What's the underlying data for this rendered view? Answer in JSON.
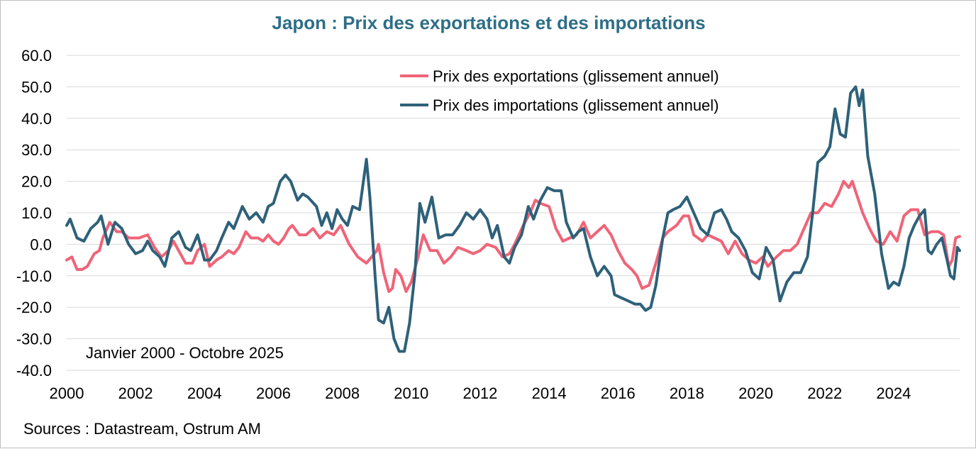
{
  "chart_data": {
    "type": "line",
    "title": "Japon : Prix des exportations et des importations",
    "xlabel": "",
    "ylabel": "",
    "x_range": [
      2000,
      2025.917
    ],
    "ylim": [
      -40,
      60
    ],
    "yticks": [
      60,
      50,
      40,
      30,
      20,
      10,
      0,
      -10,
      -20,
      -30,
      -40
    ],
    "ytick_labels": [
      "60.0",
      "50.0",
      "40.0",
      "30.0",
      "20.0",
      "10.0",
      "0.0",
      "-10.0",
      "-20.0",
      "-30.0",
      "-40.0"
    ],
    "xticks": [
      2000,
      2002,
      2004,
      2006,
      2008,
      2010,
      2012,
      2014,
      2016,
      2018,
      2020,
      2022,
      2024
    ],
    "xtick_labels": [
      "2000",
      "2002",
      "2004",
      "2006",
      "2008",
      "2010",
      "2012",
      "2014",
      "2016",
      "2018",
      "2020",
      "2022",
      "2024"
    ],
    "grid": true,
    "legend_position": "top-center",
    "annotation": "Janvier 2000 - Octobre 2025",
    "source": "Sources : Datastream, Ostrum AM",
    "series": [
      {
        "name": "Prix des exportations (glissement annuel)",
        "color": "#f06478",
        "points": [
          [
            2000.0,
            -5
          ],
          [
            2000.15,
            -4
          ],
          [
            2000.3,
            -8
          ],
          [
            2000.45,
            -8
          ],
          [
            2000.6,
            -7
          ],
          [
            2000.8,
            -3
          ],
          [
            2000.95,
            -2
          ],
          [
            2001.05,
            2
          ],
          [
            2001.25,
            7
          ],
          [
            2001.45,
            4
          ],
          [
            2001.6,
            4
          ],
          [
            2001.8,
            2
          ],
          [
            2002.1,
            2
          ],
          [
            2002.35,
            3
          ],
          [
            2002.55,
            -1
          ],
          [
            2002.75,
            -4
          ],
          [
            2002.95,
            -2
          ],
          [
            2003.1,
            1
          ],
          [
            2003.3,
            -3
          ],
          [
            2003.45,
            -6
          ],
          [
            2003.65,
            -6
          ],
          [
            2003.8,
            -2
          ],
          [
            2004.0,
            0
          ],
          [
            2004.15,
            -7
          ],
          [
            2004.35,
            -5
          ],
          [
            2004.5,
            -4
          ],
          [
            2004.7,
            -2
          ],
          [
            2004.85,
            -3
          ],
          [
            2005.0,
            -1
          ],
          [
            2005.2,
            4
          ],
          [
            2005.35,
            2
          ],
          [
            2005.55,
            2
          ],
          [
            2005.7,
            1
          ],
          [
            2005.85,
            3
          ],
          [
            2006.0,
            1
          ],
          [
            2006.15,
            0
          ],
          [
            2006.3,
            2
          ],
          [
            2006.45,
            5
          ],
          [
            2006.55,
            6
          ],
          [
            2006.75,
            3
          ],
          [
            2006.95,
            3
          ],
          [
            2007.15,
            5
          ],
          [
            2007.35,
            2
          ],
          [
            2007.55,
            4
          ],
          [
            2007.75,
            3
          ],
          [
            2007.95,
            6
          ],
          [
            2008.2,
            0
          ],
          [
            2008.45,
            -4
          ],
          [
            2008.7,
            -6
          ],
          [
            2008.85,
            -4
          ],
          [
            2009.0,
            -2
          ],
          [
            2009.05,
            0
          ],
          [
            2009.2,
            -9
          ],
          [
            2009.35,
            -15
          ],
          [
            2009.45,
            -14
          ],
          [
            2009.55,
            -8
          ],
          [
            2009.7,
            -10
          ],
          [
            2009.85,
            -15
          ],
          [
            2010.0,
            -12
          ],
          [
            2010.2,
            -4
          ],
          [
            2010.35,
            3
          ],
          [
            2010.55,
            -2
          ],
          [
            2010.75,
            -2
          ],
          [
            2010.95,
            -6
          ],
          [
            2011.15,
            -4
          ],
          [
            2011.35,
            -1
          ],
          [
            2011.6,
            -2
          ],
          [
            2011.8,
            -3
          ],
          [
            2012.0,
            -2
          ],
          [
            2012.2,
            0
          ],
          [
            2012.45,
            -1
          ],
          [
            2012.65,
            -4
          ],
          [
            2012.85,
            -3
          ],
          [
            2013.0,
            0
          ],
          [
            2013.25,
            6
          ],
          [
            2013.45,
            10
          ],
          [
            2013.6,
            14
          ],
          [
            2013.75,
            13
          ],
          [
            2014.0,
            12
          ],
          [
            2014.2,
            5
          ],
          [
            2014.4,
            1
          ],
          [
            2014.6,
            2
          ],
          [
            2014.8,
            3
          ],
          [
            2015.0,
            7
          ],
          [
            2015.2,
            2
          ],
          [
            2015.4,
            4
          ],
          [
            2015.6,
            6
          ],
          [
            2015.8,
            3
          ],
          [
            2016.0,
            -2
          ],
          [
            2016.2,
            -6
          ],
          [
            2016.4,
            -8
          ],
          [
            2016.55,
            -10
          ],
          [
            2016.7,
            -14
          ],
          [
            2016.9,
            -13
          ],
          [
            2017.1,
            -6
          ],
          [
            2017.3,
            2
          ],
          [
            2017.45,
            4
          ],
          [
            2017.7,
            6
          ],
          [
            2017.9,
            9
          ],
          [
            2018.05,
            9
          ],
          [
            2018.2,
            3
          ],
          [
            2018.45,
            1
          ],
          [
            2018.6,
            3
          ],
          [
            2018.8,
            2
          ],
          [
            2019.0,
            1
          ],
          [
            2019.2,
            -3
          ],
          [
            2019.4,
            1
          ],
          [
            2019.6,
            -3
          ],
          [
            2019.8,
            -5
          ],
          [
            2020.0,
            -6
          ],
          [
            2020.2,
            -4
          ],
          [
            2020.35,
            -7
          ],
          [
            2020.6,
            -4
          ],
          [
            2020.8,
            -2
          ],
          [
            2021.0,
            -2
          ],
          [
            2021.2,
            0
          ],
          [
            2021.4,
            5
          ],
          [
            2021.6,
            10
          ],
          [
            2021.8,
            10
          ],
          [
            2022.0,
            13
          ],
          [
            2022.2,
            12
          ],
          [
            2022.4,
            16
          ],
          [
            2022.55,
            20
          ],
          [
            2022.7,
            18
          ],
          [
            2022.8,
            20
          ],
          [
            2022.95,
            15
          ],
          [
            2023.1,
            10
          ],
          [
            2023.3,
            5
          ],
          [
            2023.5,
            1
          ],
          [
            2023.7,
            0
          ],
          [
            2023.9,
            4
          ],
          [
            2024.1,
            1
          ],
          [
            2024.3,
            9
          ],
          [
            2024.5,
            11
          ],
          [
            2024.7,
            11
          ],
          [
            2024.9,
            3
          ],
          [
            2025.1,
            4
          ],
          [
            2025.3,
            4
          ],
          [
            2025.45,
            3
          ],
          [
            2025.6,
            -7
          ],
          [
            2025.7,
            -5
          ],
          [
            2025.8,
            2
          ],
          [
            2025.917,
            2.5
          ]
        ]
      },
      {
        "name": "Prix des importations (glissement annuel)",
        "color": "#2e6179",
        "points": [
          [
            2000.0,
            6
          ],
          [
            2000.1,
            8
          ],
          [
            2000.3,
            2
          ],
          [
            2000.5,
            1
          ],
          [
            2000.7,
            5
          ],
          [
            2000.9,
            7
          ],
          [
            2001.0,
            9
          ],
          [
            2001.2,
            0
          ],
          [
            2001.4,
            7
          ],
          [
            2001.6,
            5
          ],
          [
            2001.8,
            0
          ],
          [
            2002.0,
            -3
          ],
          [
            2002.2,
            -2
          ],
          [
            2002.35,
            1
          ],
          [
            2002.5,
            -2
          ],
          [
            2002.7,
            -4
          ],
          [
            2002.85,
            -7
          ],
          [
            2003.05,
            2
          ],
          [
            2003.25,
            4
          ],
          [
            2003.45,
            -1
          ],
          [
            2003.6,
            -2
          ],
          [
            2003.8,
            3
          ],
          [
            2004.0,
            -5
          ],
          [
            2004.15,
            -5
          ],
          [
            2004.35,
            -2
          ],
          [
            2004.5,
            2
          ],
          [
            2004.7,
            7
          ],
          [
            2004.85,
            5
          ],
          [
            2005.1,
            12
          ],
          [
            2005.3,
            8
          ],
          [
            2005.5,
            10
          ],
          [
            2005.7,
            7
          ],
          [
            2005.85,
            12
          ],
          [
            2006.0,
            13
          ],
          [
            2006.2,
            20
          ],
          [
            2006.35,
            22
          ],
          [
            2006.5,
            20
          ],
          [
            2006.7,
            14
          ],
          [
            2006.85,
            16
          ],
          [
            2007.0,
            15
          ],
          [
            2007.25,
            12
          ],
          [
            2007.4,
            6
          ],
          [
            2007.55,
            10
          ],
          [
            2007.7,
            5
          ],
          [
            2007.85,
            11
          ],
          [
            2008.0,
            8
          ],
          [
            2008.15,
            6
          ],
          [
            2008.3,
            12
          ],
          [
            2008.5,
            11
          ],
          [
            2008.7,
            27
          ],
          [
            2008.8,
            15
          ],
          [
            2008.95,
            -10
          ],
          [
            2009.05,
            -24
          ],
          [
            2009.2,
            -25
          ],
          [
            2009.35,
            -20
          ],
          [
            2009.5,
            -30
          ],
          [
            2009.65,
            -34
          ],
          [
            2009.8,
            -34
          ],
          [
            2009.95,
            -25
          ],
          [
            2010.1,
            -10
          ],
          [
            2010.25,
            13
          ],
          [
            2010.4,
            7
          ],
          [
            2010.6,
            15
          ],
          [
            2010.8,
            2
          ],
          [
            2011.0,
            3
          ],
          [
            2011.2,
            3
          ],
          [
            2011.4,
            6
          ],
          [
            2011.6,
            10
          ],
          [
            2011.8,
            8
          ],
          [
            2012.0,
            11
          ],
          [
            2012.2,
            8
          ],
          [
            2012.35,
            2
          ],
          [
            2012.5,
            6
          ],
          [
            2012.7,
            -4
          ],
          [
            2012.85,
            -6
          ],
          [
            2013.0,
            -1
          ],
          [
            2013.2,
            3
          ],
          [
            2013.4,
            12
          ],
          [
            2013.55,
            8
          ],
          [
            2013.75,
            14
          ],
          [
            2013.95,
            18
          ],
          [
            2014.15,
            17
          ],
          [
            2014.35,
            17
          ],
          [
            2014.5,
            7
          ],
          [
            2014.7,
            2
          ],
          [
            2014.85,
            4
          ],
          [
            2015.0,
            5
          ],
          [
            2015.2,
            -4
          ],
          [
            2015.4,
            -10
          ],
          [
            2015.6,
            -7
          ],
          [
            2015.8,
            -10
          ],
          [
            2015.9,
            -16
          ],
          [
            2016.1,
            -17
          ],
          [
            2016.3,
            -18
          ],
          [
            2016.5,
            -19
          ],
          [
            2016.65,
            -19
          ],
          [
            2016.8,
            -21
          ],
          [
            2016.95,
            -20
          ],
          [
            2017.1,
            -13
          ],
          [
            2017.3,
            2
          ],
          [
            2017.45,
            10
          ],
          [
            2017.6,
            11
          ],
          [
            2017.8,
            12
          ],
          [
            2018.0,
            15
          ],
          [
            2018.2,
            10
          ],
          [
            2018.4,
            5
          ],
          [
            2018.6,
            3
          ],
          [
            2018.8,
            10
          ],
          [
            2019.0,
            11
          ],
          [
            2019.15,
            8
          ],
          [
            2019.3,
            4
          ],
          [
            2019.5,
            2
          ],
          [
            2019.7,
            -2
          ],
          [
            2019.9,
            -9
          ],
          [
            2020.1,
            -11
          ],
          [
            2020.3,
            -1
          ],
          [
            2020.5,
            -5
          ],
          [
            2020.7,
            -18
          ],
          [
            2020.9,
            -12
          ],
          [
            2021.1,
            -9
          ],
          [
            2021.3,
            -9
          ],
          [
            2021.5,
            -4
          ],
          [
            2021.65,
            10
          ],
          [
            2021.8,
            26
          ],
          [
            2022.0,
            28
          ],
          [
            2022.15,
            31
          ],
          [
            2022.3,
            43
          ],
          [
            2022.45,
            35
          ],
          [
            2022.6,
            34
          ],
          [
            2022.75,
            48
          ],
          [
            2022.9,
            50
          ],
          [
            2023.0,
            44
          ],
          [
            2023.1,
            49
          ],
          [
            2023.25,
            28
          ],
          [
            2023.45,
            16
          ],
          [
            2023.65,
            -3
          ],
          [
            2023.85,
            -14
          ],
          [
            2024.0,
            -12
          ],
          [
            2024.15,
            -13
          ],
          [
            2024.3,
            -7
          ],
          [
            2024.45,
            2
          ],
          [
            2024.6,
            6
          ],
          [
            2024.75,
            9
          ],
          [
            2024.9,
            11
          ],
          [
            2025.0,
            -2
          ],
          [
            2025.1,
            -3
          ],
          [
            2025.25,
            0
          ],
          [
            2025.4,
            2
          ],
          [
            2025.55,
            -5
          ],
          [
            2025.65,
            -10
          ],
          [
            2025.75,
            -11
          ],
          [
            2025.85,
            -1
          ],
          [
            2025.917,
            -2
          ]
        ]
      }
    ]
  }
}
